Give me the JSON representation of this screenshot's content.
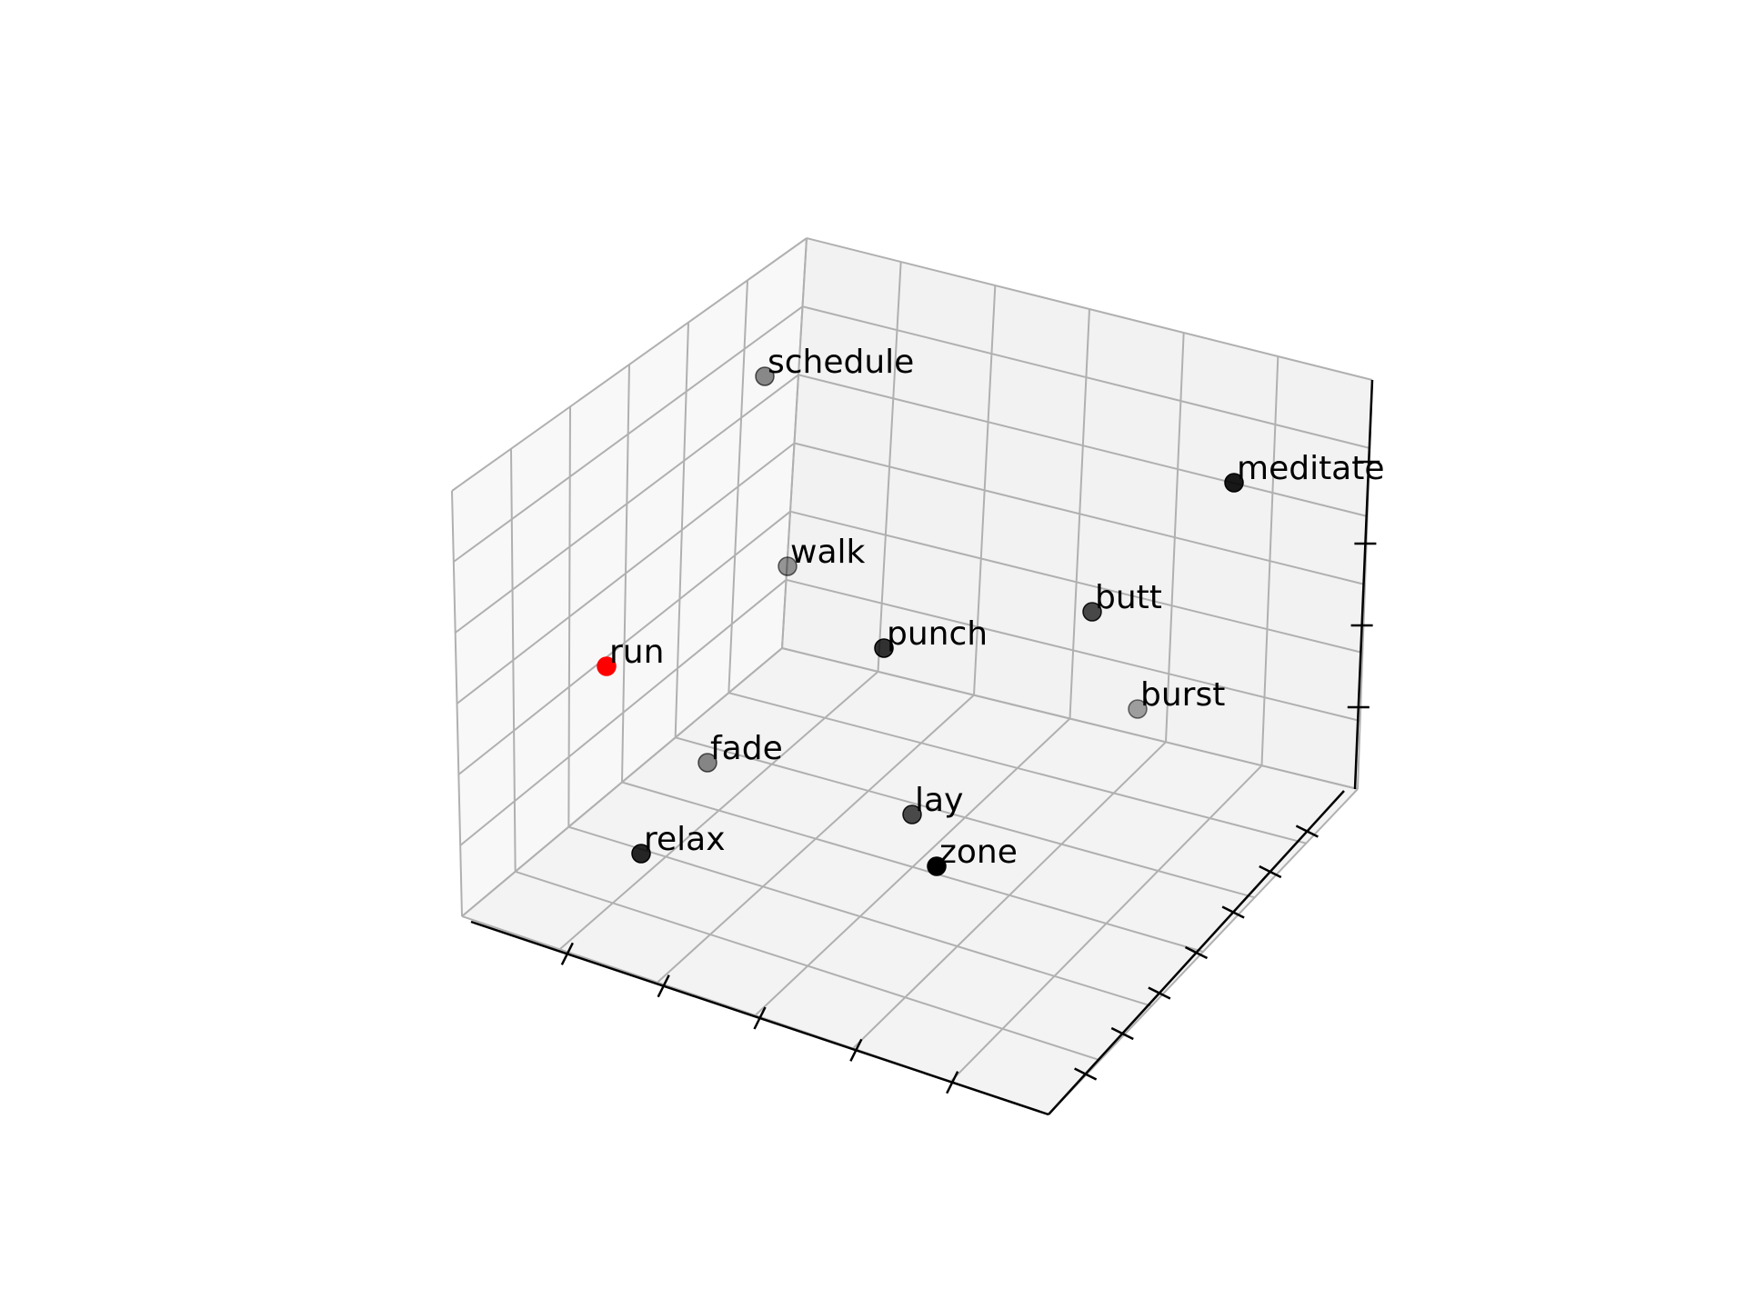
{
  "chart_data": {
    "type": "scatter",
    "projection": "3d",
    "title": "",
    "xlabel": "",
    "ylabel": "",
    "zlabel": "",
    "grid": true,
    "tick_labels_shown": false,
    "points": [
      {
        "label": "run",
        "color": "#ff0000",
        "alpha": 1.0
      },
      {
        "label": "schedule",
        "color": "#000000",
        "alpha": 0.45
      },
      {
        "label": "meditate",
        "color": "#000000",
        "alpha": 0.9
      },
      {
        "label": "walk",
        "color": "#000000",
        "alpha": 0.4
      },
      {
        "label": "butt",
        "color": "#000000",
        "alpha": 0.7
      },
      {
        "label": "punch",
        "color": "#000000",
        "alpha": 0.8
      },
      {
        "label": "burst",
        "color": "#000000",
        "alpha": 0.35
      },
      {
        "label": "fade",
        "color": "#000000",
        "alpha": 0.45
      },
      {
        "label": "lay",
        "color": "#000000",
        "alpha": 0.7
      },
      {
        "label": "relax",
        "color": "#000000",
        "alpha": 0.85
      },
      {
        "label": "zone",
        "color": "#000000",
        "alpha": 1.0
      }
    ]
  }
}
